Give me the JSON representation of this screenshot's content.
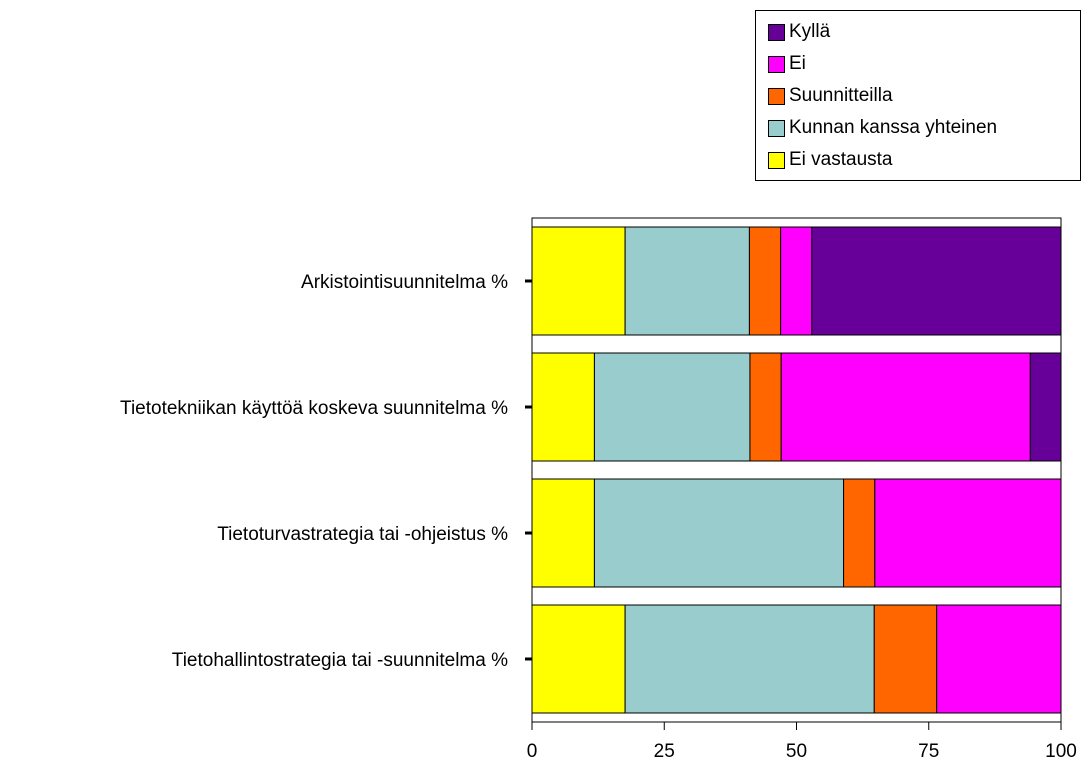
{
  "chart_data": {
    "type": "bar",
    "orientation": "horizontal",
    "stacked": true,
    "categories": [
      "Arkistointisuunnitelma %",
      "Tietotekniikan käyttöä koskeva suunnitelma %",
      "Tietoturvastrategia tai -ohjeistus %",
      "Tietohallintostrategia tai -suunnitelma %"
    ],
    "series": [
      {
        "name": "Ei vastausta",
        "color": "#ffff00",
        "values": [
          17.6,
          11.8,
          11.8,
          17.6
        ]
      },
      {
        "name": "Kunnan kanssa yhteinen",
        "color": "#99cccc",
        "values": [
          23.5,
          29.4,
          47.1,
          47.1
        ]
      },
      {
        "name": "Suunnitteilla",
        "color": "#ff6600",
        "values": [
          5.9,
          5.9,
          5.9,
          11.8
        ]
      },
      {
        "name": "Ei",
        "color": "#ff00ff",
        "values": [
          5.9,
          47.1,
          35.2,
          23.5
        ]
      },
      {
        "name": "Kyllä",
        "color": "#660099",
        "values": [
          47.1,
          5.8,
          0,
          0
        ]
      }
    ],
    "legend_order": [
      "Kyllä",
      "Ei",
      "Suunnitteilla",
      "Kunnan kanssa yhteinen",
      "Ei vastausta"
    ],
    "xlim": [
      0,
      100
    ],
    "xticks": [
      0,
      25,
      50,
      75,
      100
    ],
    "title": "",
    "xlabel": "",
    "ylabel": "",
    "legend_position": "top-right",
    "grid": false
  }
}
